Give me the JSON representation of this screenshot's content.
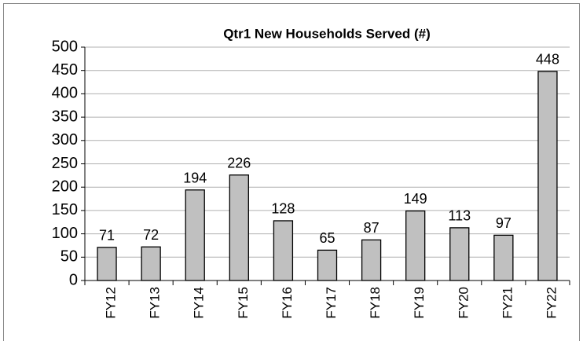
{
  "chart_data": {
    "type": "bar",
    "title": "Qtr1 New Households Served (#)",
    "categories": [
      "FY12",
      "FY13",
      "FY14",
      "FY15",
      "FY16",
      "FY17",
      "FY18",
      "FY19",
      "FY20",
      "FY21",
      "FY22"
    ],
    "values": [
      71,
      72,
      194,
      226,
      128,
      65,
      87,
      149,
      113,
      97,
      448
    ],
    "color": "#c0c0c0",
    "ylim": [
      0,
      500
    ],
    "yticks": [
      0,
      50,
      100,
      150,
      200,
      250,
      300,
      350,
      400,
      450,
      500
    ],
    "grid": true
  }
}
